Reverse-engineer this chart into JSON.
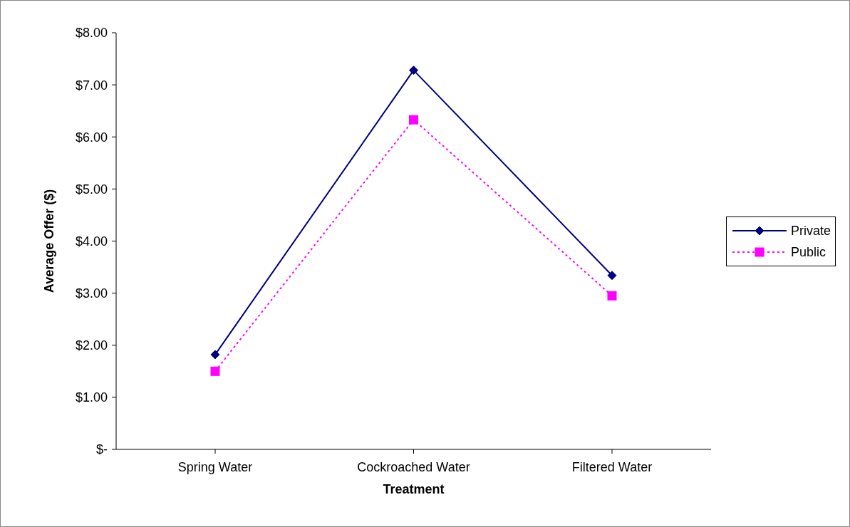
{
  "chart_data": {
    "type": "line",
    "xlabel": "Treatment",
    "ylabel": "Average Offer ($)",
    "categories": [
      "Spring Water",
      "Cockroached Water",
      "Filtered Water"
    ],
    "series": [
      {
        "name": "Private",
        "color": "#000080",
        "values": [
          1.82,
          7.28,
          3.34
        ],
        "marker": "diamond",
        "line_style": "solid"
      },
      {
        "name": "Public",
        "color": "#ff00ff",
        "values": [
          1.5,
          6.33,
          2.95
        ],
        "marker": "square",
        "line_style": "dotted"
      }
    ],
    "ylim": [
      0,
      8
    ],
    "yticks": [
      {
        "value": 0,
        "label": "$-"
      },
      {
        "value": 1,
        "label": "$1.00"
      },
      {
        "value": 2,
        "label": "$2.00"
      },
      {
        "value": 3,
        "label": "$3.00"
      },
      {
        "value": 4,
        "label": "$4.00"
      },
      {
        "value": 5,
        "label": "$5.00"
      },
      {
        "value": 6,
        "label": "$6.00"
      },
      {
        "value": 7,
        "label": "$7.00"
      },
      {
        "value": 8,
        "label": "$8.00"
      }
    ],
    "grid": false,
    "legend": "right"
  }
}
